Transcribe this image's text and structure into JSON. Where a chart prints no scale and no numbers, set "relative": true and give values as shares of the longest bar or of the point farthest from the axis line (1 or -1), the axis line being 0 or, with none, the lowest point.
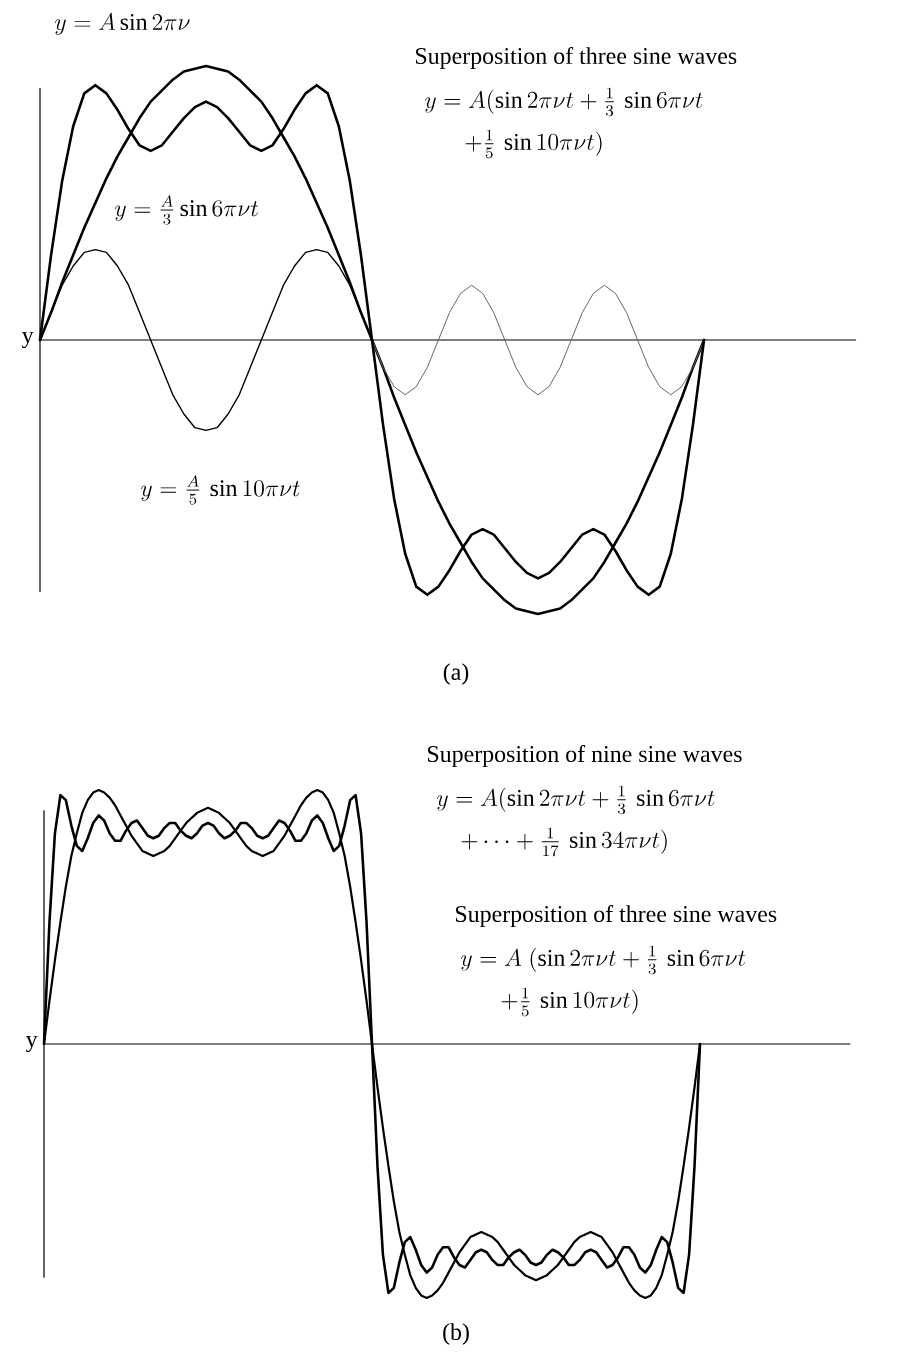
{
  "chart_data": [
    {
      "type": "line",
      "relative": true,
      "ylabel": "y",
      "categories": [
        null,
        null,
        null,
        null,
        null,
        null,
        null,
        null,
        null,
        null,
        null,
        null,
        null,
        null,
        null,
        null,
        null,
        null,
        null,
        null,
        null,
        null,
        null,
        null,
        null,
        null,
        null,
        null,
        null,
        null,
        null,
        null,
        null,
        null,
        null,
        null,
        null,
        null,
        null,
        null,
        null,
        null,
        null,
        null,
        null,
        null,
        null,
        null,
        null,
        null,
        null,
        null,
        null,
        null,
        null,
        null,
        null,
        null,
        null,
        null,
        null
      ],
      "series": [
        {
          "color": "#000000",
          "values": [
            0.0,
            0.1,
            0.21,
            0.31,
            0.41,
            0.5,
            0.59,
            0.67,
            0.74,
            0.81,
            0.87,
            0.91,
            0.95,
            0.98,
            0.99,
            1.0,
            0.99,
            0.98,
            0.95,
            0.91,
            0.87,
            0.81,
            0.74,
            0.67,
            0.59,
            0.5,
            0.41,
            0.31,
            0.21,
            0.1,
            0.0,
            -0.1,
            -0.21,
            -0.31,
            -0.41,
            -0.5,
            -0.59,
            -0.67,
            -0.74,
            -0.81,
            -0.87,
            -0.91,
            -0.95,
            -0.98,
            -0.99,
            -1.0,
            -0.99,
            -0.98,
            -0.95,
            -0.91,
            -0.87,
            -0.81,
            -0.74,
            -0.67,
            -0.59,
            -0.5,
            -0.41,
            -0.31,
            -0.21,
            -0.1,
            0.0
          ]
        },
        {
          "color": "#000000",
          "values": [
            0.0,
            0.1,
            0.2,
            0.27,
            0.32,
            0.33,
            0.32,
            0.27,
            0.2,
            0.1,
            0.0,
            -0.1,
            -0.2,
            -0.27,
            -0.32,
            -0.33,
            -0.32,
            -0.27,
            -0.2,
            -0.1,
            0.0,
            0.1,
            0.2,
            0.27,
            0.32,
            0.33,
            0.32,
            0.27,
            0.2,
            0.1,
            0.0,
            null,
            null,
            null,
            null,
            null,
            null,
            null,
            null,
            null,
            null,
            null,
            null,
            null,
            null,
            null,
            null,
            null,
            null,
            null,
            null,
            null,
            null,
            null,
            null,
            null,
            null,
            null,
            null,
            null,
            null
          ]
        },
        {
          "color": "#666666",
          "values": [
            null,
            null,
            null,
            null,
            null,
            null,
            null,
            null,
            null,
            null,
            null,
            null,
            null,
            null,
            null,
            null,
            null,
            null,
            null,
            null,
            null,
            null,
            null,
            null,
            null,
            null,
            null,
            null,
            null,
            null,
            0.0,
            -0.1,
            -0.17,
            -0.2,
            -0.17,
            -0.1,
            0.0,
            0.1,
            0.17,
            0.2,
            0.17,
            0.1,
            0.0,
            -0.1,
            -0.17,
            -0.2,
            -0.17,
            -0.1,
            0.0,
            0.1,
            0.17,
            0.2,
            0.17,
            0.1,
            0.0,
            -0.1,
            -0.17,
            -0.2,
            -0.17,
            -0.1,
            0.0
          ]
        },
        {
          "color": "#000000",
          "values": [
            0.0,
            0.31,
            0.58,
            0.78,
            0.9,
            0.93,
            0.9,
            0.84,
            0.77,
            0.71,
            0.69,
            0.71,
            0.76,
            0.81,
            0.85,
            0.87,
            0.85,
            0.81,
            0.76,
            0.71,
            0.69,
            0.71,
            0.77,
            0.84,
            0.9,
            0.93,
            0.9,
            0.78,
            0.58,
            0.31,
            0.0,
            -0.31,
            -0.58,
            -0.78,
            -0.9,
            -0.93,
            -0.9,
            -0.84,
            -0.77,
            -0.71,
            -0.69,
            -0.71,
            -0.76,
            -0.81,
            -0.85,
            -0.87,
            -0.85,
            -0.81,
            -0.76,
            -0.71,
            -0.69,
            -0.71,
            -0.77,
            -0.84,
            -0.9,
            -0.93,
            -0.9,
            -0.78,
            -0.58,
            -0.31,
            0.0
          ]
        }
      ],
      "annotations": [
        "y = A \\sin 2\\pi\\nu",
        "Superposition of three sine waves",
        "y = A(\\sin 2\\pi\\nu t + \\tfrac{1}{3}\\,\\sin 6\\pi\\nu t",
        "+ \\tfrac{1}{5}\\,\\sin 10\\pi\\nu t)",
        "y = \\tfrac{A}{3}\\sin 6\\pi\\nu t",
        "y = \\tfrac{A}{5}\\,\\sin 10\\pi\\nu t",
        "(a)"
      ]
    },
    {
      "type": "line",
      "relative": true,
      "ylabel": "y",
      "categories": [
        null,
        null,
        null,
        null,
        null,
        null,
        null,
        null,
        null,
        null,
        null,
        null,
        null,
        null,
        null,
        null,
        null,
        null,
        null,
        null,
        null,
        null,
        null,
        null,
        null,
        null,
        null,
        null,
        null,
        null,
        null,
        null,
        null,
        null,
        null,
        null,
        null,
        null,
        null,
        null,
        null,
        null,
        null,
        null,
        null,
        null,
        null,
        null,
        null,
        null,
        null,
        null,
        null,
        null,
        null,
        null,
        null,
        null,
        null,
        null,
        null,
        null,
        null,
        null,
        null,
        null,
        null,
        null,
        null,
        null,
        null,
        null,
        null,
        null,
        null,
        null,
        null,
        null,
        null,
        null,
        null,
        null,
        null,
        null,
        null,
        null,
        null,
        null,
        null,
        null,
        null,
        null,
        null,
        null,
        null,
        null,
        null,
        null,
        null,
        null,
        null,
        null,
        null,
        null,
        null,
        null,
        null,
        null,
        null,
        null,
        null,
        null,
        null,
        null,
        null,
        null,
        null,
        null,
        null,
        null,
        null
      ],
      "series": [
        {
          "color": "#000000",
          "values": [
            0.0,
            0.48,
            0.83,
            0.98,
            0.96,
            0.86,
            0.78,
            0.76,
            0.81,
            0.87,
            0.9,
            0.88,
            0.83,
            0.8,
            0.8,
            0.84,
            0.87,
            0.88,
            0.85,
            0.82,
            0.81,
            0.82,
            0.85,
            0.87,
            0.87,
            0.84,
            0.82,
            0.81,
            0.83,
            0.86,
            0.87,
            0.86,
            0.83,
            0.81,
            0.82,
            0.84,
            0.87,
            0.87,
            0.85,
            0.82,
            0.81,
            0.82,
            0.85,
            0.88,
            0.87,
            0.84,
            0.8,
            0.8,
            0.83,
            0.88,
            0.9,
            0.87,
            0.81,
            0.76,
            0.78,
            0.86,
            0.96,
            0.98,
            0.83,
            0.48,
            0.0,
            -0.48,
            -0.83,
            -0.98,
            -0.96,
            -0.86,
            -0.78,
            -0.76,
            -0.81,
            -0.87,
            -0.9,
            -0.88,
            -0.83,
            -0.8,
            -0.8,
            -0.84,
            -0.87,
            -0.88,
            -0.85,
            -0.82,
            -0.81,
            -0.82,
            -0.85,
            -0.87,
            -0.87,
            -0.84,
            -0.82,
            -0.81,
            -0.83,
            -0.86,
            -0.87,
            -0.86,
            -0.83,
            -0.81,
            -0.82,
            -0.84,
            -0.87,
            -0.87,
            -0.85,
            -0.82,
            -0.81,
            -0.82,
            -0.85,
            -0.88,
            -0.87,
            -0.84,
            -0.8,
            -0.8,
            -0.83,
            -0.88,
            -0.9,
            -0.87,
            -0.81,
            -0.76,
            -0.78,
            -0.86,
            -0.96,
            -0.98,
            -0.83,
            -0.48,
            0.0
          ]
        },
        {
          "color": "#000000",
          "values": [
            0.0,
            0.17,
            0.33,
            0.48,
            0.62,
            0.74,
            0.83,
            0.91,
            0.96,
            0.99,
            1.0,
            0.99,
            0.97,
            0.94,
            0.9,
            0.86,
            0.82,
            0.79,
            0.76,
            0.75,
            0.74,
            0.75,
            0.76,
            0.78,
            0.81,
            0.84,
            0.87,
            0.89,
            0.91,
            0.92,
            0.93,
            0.92,
            0.91,
            0.89,
            0.87,
            0.84,
            0.81,
            0.78,
            0.76,
            0.75,
            0.74,
            0.75,
            0.76,
            0.79,
            0.82,
            0.86,
            0.9,
            0.94,
            0.97,
            0.99,
            1.0,
            0.99,
            0.96,
            0.91,
            0.83,
            0.74,
            0.62,
            0.48,
            0.33,
            0.17,
            0.0,
            -0.17,
            -0.33,
            -0.48,
            -0.62,
            -0.74,
            -0.83,
            -0.91,
            -0.96,
            -0.99,
            -1.0,
            -0.99,
            -0.97,
            -0.94,
            -0.9,
            -0.86,
            -0.82,
            -0.79,
            -0.76,
            -0.75,
            -0.74,
            -0.75,
            -0.76,
            -0.78,
            -0.81,
            -0.84,
            -0.87,
            -0.89,
            -0.91,
            -0.92,
            -0.93,
            -0.92,
            -0.91,
            -0.89,
            -0.87,
            -0.84,
            -0.81,
            -0.78,
            -0.76,
            -0.75,
            -0.74,
            -0.75,
            -0.76,
            -0.79,
            -0.82,
            -0.86,
            -0.9,
            -0.94,
            -0.97,
            -0.99,
            -1.0,
            -0.99,
            -0.96,
            -0.91,
            -0.83,
            -0.74,
            -0.62,
            -0.48,
            -0.33,
            -0.17,
            0.0
          ]
        }
      ],
      "annotations": [
        "Superposition of nine sine waves",
        "y = A(\\sin 2\\pi\\nu t + \\tfrac{1}{3}\\,\\sin 6\\pi\\nu t",
        "+ \\cdots + \\tfrac{1}{17}\\,\\sin 34\\pi\\nu t)",
        "Superposition of three sine waves",
        "y = A\\;(\\sin 2\\pi\\nu t + \\tfrac{1}{3}\\,\\sin 6\\pi\\nu t",
        "+ \\tfrac{1}{5}\\,\\sin 10\\pi\\nu t)",
        "(b)"
      ]
    }
  ]
}
